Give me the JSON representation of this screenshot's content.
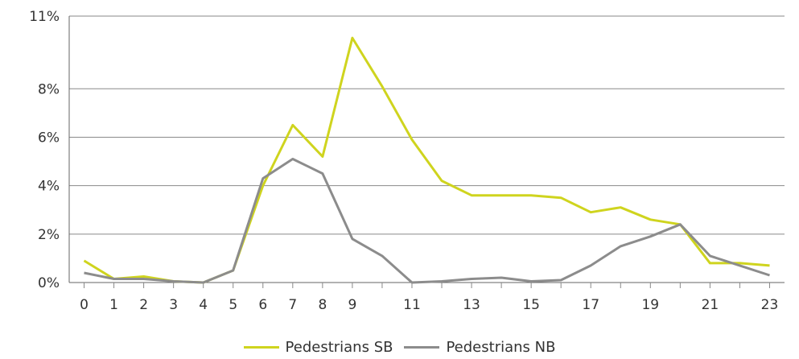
{
  "chart_data": {
    "type": "line",
    "title": "",
    "xlabel": "",
    "ylabel": "",
    "x": [
      0,
      1,
      2,
      3,
      4,
      5,
      6,
      7,
      8,
      9,
      10,
      11,
      12,
      13,
      14,
      15,
      16,
      17,
      18,
      19,
      20,
      21,
      22,
      23
    ],
    "x_tick_labels": [
      "0",
      "1",
      "2",
      "3",
      "4",
      "5",
      "6",
      "7",
      "8",
      "9",
      "11",
      "13",
      "15",
      "17",
      "19",
      "21",
      "23"
    ],
    "x_tick_values": [
      0,
      1,
      2,
      3,
      4,
      5,
      6,
      7,
      8,
      9,
      11,
      13,
      15,
      17,
      19,
      21,
      23
    ],
    "xlim": [
      -0.5,
      23.5
    ],
    "y_tick_labels": [
      "0%",
      "2%",
      "4%",
      "6%",
      "8%",
      "11%"
    ],
    "y_tick_values": [
      0,
      2,
      4,
      6,
      8,
      11
    ],
    "ylim": [
      0,
      11
    ],
    "grid": true,
    "legend_position": "bottom",
    "series": [
      {
        "name": "Pedestrians SB",
        "color": "#cfd41e",
        "values": [
          0.9,
          0.15,
          0.25,
          0.05,
          0.0,
          0.5,
          4.0,
          6.5,
          5.2,
          10.1,
          8.1,
          5.9,
          4.2,
          3.6,
          3.6,
          3.6,
          3.5,
          2.9,
          3.1,
          2.6,
          2.4,
          0.8,
          0.8,
          0.7
        ]
      },
      {
        "name": "Pedestrians NB",
        "color": "#8c8c8c",
        "values": [
          0.4,
          0.15,
          0.15,
          0.05,
          0.0,
          0.5,
          4.3,
          5.1,
          4.5,
          1.8,
          1.1,
          0.0,
          0.05,
          0.15,
          0.2,
          0.05,
          0.1,
          0.7,
          1.5,
          1.9,
          2.4,
          1.1,
          0.7,
          0.3
        ]
      }
    ]
  }
}
